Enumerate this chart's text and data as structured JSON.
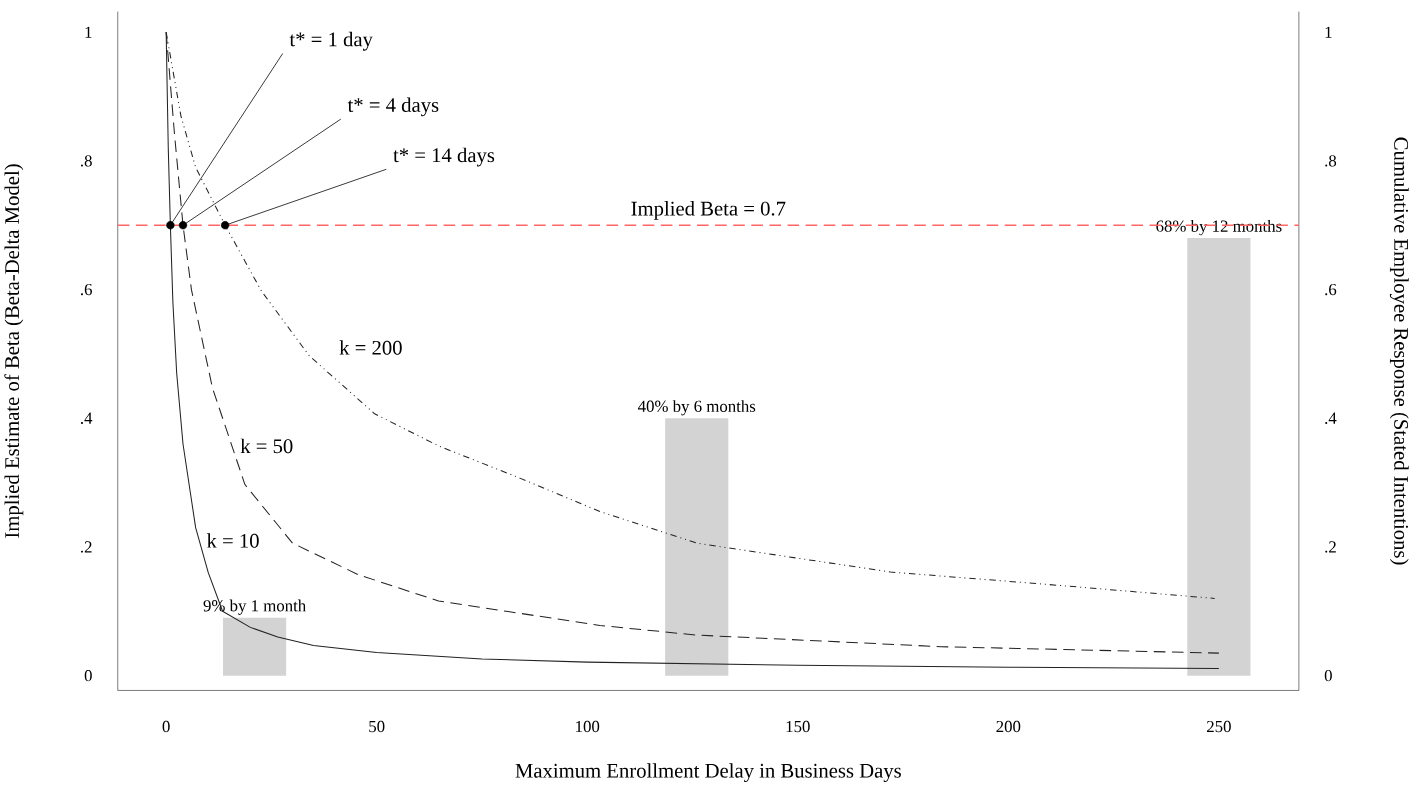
{
  "chart_data": {
    "type": "line",
    "xlabel": "Maximum Enrollment Delay in Business Days",
    "ylabel": "Implied Estimate of Beta (Beta-Delta Model)",
    "y2label": "Cumulative Employee Response  (Stated Intentions)",
    "xlim": [
      -11.5,
      269
    ],
    "xticks": [
      0,
      50,
      100,
      150,
      200,
      250
    ],
    "ylim": [
      -0.023,
      1.032
    ],
    "yticks": [
      0,
      {
        "value": 0.2,
        "label": ".2"
      },
      {
        "value": 0.4,
        "label": ".4"
      },
      {
        "value": 0.6,
        "label": ".6"
      },
      {
        "value": 0.8,
        "label": ".8"
      },
      1
    ],
    "y2lim": [
      -0.023,
      1.032
    ],
    "y2ticks": [
      0,
      {
        "value": 0.2,
        "label": ".2"
      },
      {
        "value": 0.4,
        "label": ".4"
      },
      {
        "value": 0.6,
        "label": ".6"
      },
      {
        "value": 0.8,
        "label": ".8"
      },
      1
    ],
    "series": [
      {
        "type": "bar",
        "axis": "y2",
        "color": "#d3d3d3",
        "x": [
          21,
          126,
          250
        ],
        "values": [
          0.09,
          0.4,
          0.68
        ],
        "value_labels": [
          "9% by 1 month",
          "40% by 6 months",
          "68% by 12 months"
        ]
      },
      {
        "name": "k = 10",
        "color": "#222222",
        "line_style": "solid",
        "x": [
          0,
          0.5,
          1,
          1.6,
          2.5,
          4,
          7,
          10,
          13.4,
          20,
          26.5,
          35,
          50,
          75,
          100,
          150,
          200,
          250
        ],
        "values": [
          1,
          0.82,
          0.7,
          0.58,
          0.47,
          0.36,
          0.23,
          0.16,
          0.1,
          0.075,
          0.06,
          0.047,
          0.036,
          0.026,
          0.021,
          0.016,
          0.013,
          0.011
        ]
      },
      {
        "name": "k = 50",
        "color": "#222222",
        "line_style": "dashed",
        "x": [
          0,
          2,
          4,
          6,
          11,
          18.7,
          30,
          45.6,
          64.7,
          103,
          126,
          184,
          250
        ],
        "values": [
          1,
          0.84,
          0.7,
          0.6,
          0.447,
          0.297,
          0.206,
          0.157,
          0.116,
          0.078,
          0.063,
          0.045,
          0.035
        ]
      },
      {
        "name": "k = 200",
        "color": "#222222",
        "line_style": "dashdotted",
        "x": [
          0,
          3.5,
          7,
          14,
          22.6,
          34,
          49.5,
          64.7,
          84,
          103,
          126,
          172,
          207,
          249
        ],
        "values": [
          1,
          0.87,
          0.79,
          0.7,
          0.598,
          0.497,
          0.407,
          0.357,
          0.307,
          0.255,
          0.206,
          0.161,
          0.143,
          0.12
        ]
      },
      {
        "type": "scatter",
        "color": "#000000",
        "marker": "circle",
        "x": [
          1,
          4,
          14
        ],
        "values": [
          0.7,
          0.7,
          0.7
        ]
      }
    ],
    "ref_lines": [
      {
        "axis": "y",
        "value": 0.7,
        "label": "Implied Beta = 0.7",
        "color": "#ff6666",
        "line_style": "dashed"
      }
    ],
    "annotations": [
      {
        "text": "t* = 1 day",
        "x": 1,
        "y": 0.7
      },
      {
        "text": "t* = 4 days",
        "x": 4,
        "y": 0.7
      },
      {
        "text": "t* = 14 days",
        "x": 14,
        "y": 0.7
      }
    ]
  }
}
